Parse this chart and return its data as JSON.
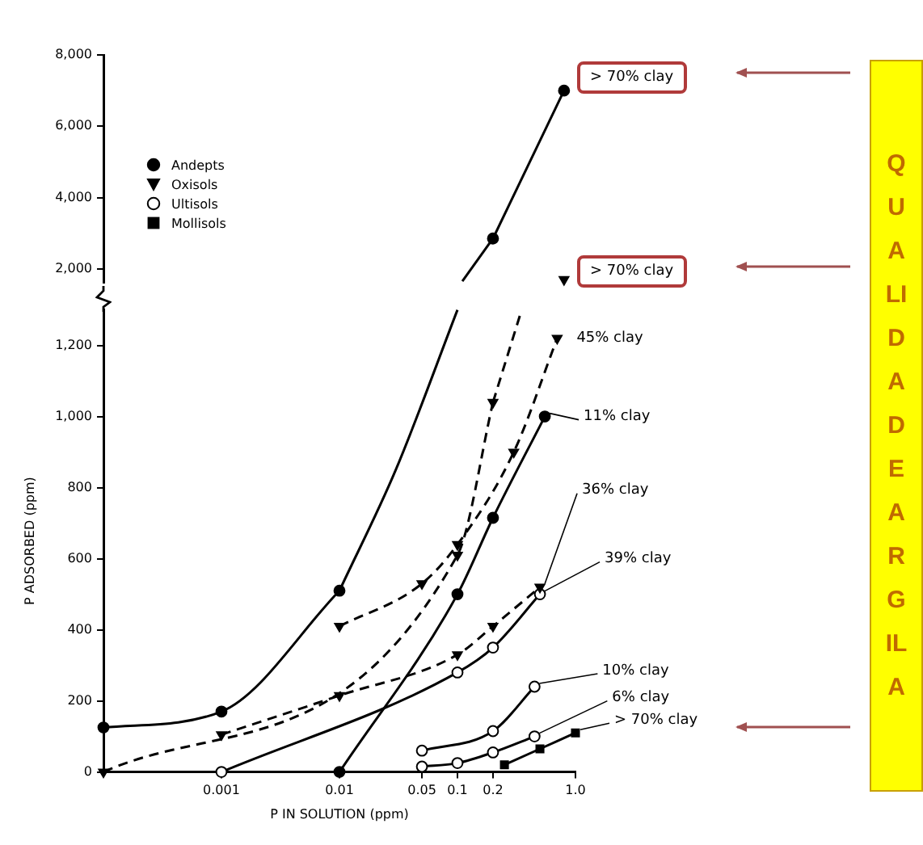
{
  "chart_data": [
    {
      "type": "line",
      "log": "x",
      "tick_labels": "y",
      "xlim": [
        0.0001,
        1
      ],
      "ylim": [
        1600,
        8000
      ],
      "yticks": [
        {
          "value": 2000,
          "label": "2,000"
        },
        {
          "value": 4000,
          "label": "4,000"
        },
        {
          "value": 6000,
          "label": "6,000"
        },
        {
          "value": 8000,
          "label": "8,000"
        }
      ],
      "series": [
        {
          "color": "#000000",
          "marker": "circle",
          "line_style": "solid",
          "x": [
            0.2,
            0.8
          ],
          "values": [
            2850,
            7000
          ]
        },
        {
          "color": "#000000",
          "marker": "none",
          "line_style": "solid",
          "x": [
            0.11,
            0.2
          ],
          "values": [
            1650,
            2850
          ]
        },
        {
          "color": "#000000",
          "marker": "triangle",
          "line_style": "dashed",
          "x": [
            0.8
          ],
          "values": [
            1700
          ]
        }
      ],
      "annotations": [
        "> 70% clay",
        "> 70% clay",
        "QUALIDADE ARGILA"
      ]
    },
    {
      "type": "line",
      "xlabel": "P IN SOLUTION (ppm)",
      "ylabel": "P ADSORBED (ppm)",
      "log": "x",
      "legend": "top left",
      "xlim": [
        0.0001,
        1
      ],
      "xticks": [
        0.001,
        0.01,
        0.05,
        0.1,
        0.2,
        {
          "value": 1,
          "label": "1.0"
        }
      ],
      "ylim": [
        0,
        1300
      ],
      "yticks": [
        0,
        200,
        400,
        600,
        800,
        {
          "value": 1000,
          "label": "1,000"
        },
        {
          "value": 1200,
          "label": "1,200"
        }
      ],
      "series": [
        {
          "name": "Andepts",
          "color": "#000000",
          "marker": "circle",
          "line_style": "solid",
          "x": [
            0.0001,
            0.001,
            0.01,
            null,
            0.01,
            0.1,
            0.2,
            0.55
          ],
          "values": [
            125,
            170,
            510,
            null,
            0,
            500,
            715,
            1000
          ]
        },
        {
          "color": "#000000",
          "marker": "none",
          "line_style": "solid",
          "x": [
            0.01,
            0.03,
            0.1
          ],
          "values": [
            510,
            850,
            1300
          ]
        },
        {
          "name": "Oxisols",
          "color": "#000000",
          "marker": "triangle",
          "line_style": "dashed",
          "x": [
            0.0001,
            0.1,
            0.2,
            null,
            0.01,
            0.05,
            0.1,
            0.3,
            0.7,
            null,
            0.001,
            0.01,
            0.1,
            0.2,
            0.5
          ],
          "values": [
            0,
            610,
            1040,
            null,
            410,
            530,
            640,
            900,
            1220,
            null,
            105,
            215,
            330,
            410,
            520
          ]
        },
        {
          "color": "#000000",
          "marker": "none",
          "line_style": "dashed",
          "x": [
            0.2,
            0.35
          ],
          "values": [
            1040,
            1300
          ]
        },
        {
          "name": "Ultisols",
          "color": "#000000",
          "marker": "circle",
          "line_style": "solid",
          "x": [
            0.001,
            0.1,
            0.2,
            0.5,
            null,
            0.05,
            0.2,
            0.45,
            null,
            0.05,
            0.1,
            0.2,
            0.45
          ],
          "values": [
            0,
            280,
            350,
            500,
            null,
            60,
            115,
            240,
            null,
            15,
            25,
            55,
            100
          ]
        },
        {
          "name": "Mollisols",
          "color": "#000000",
          "marker": "square",
          "line_style": "solid",
          "x": [
            0.25,
            0.5,
            1
          ],
          "values": [
            20,
            65,
            110
          ]
        }
      ],
      "annotations": [
        {
          "text": "45% clay",
          "x": 0.7,
          "y": 1220
        },
        {
          "text": "11% clay",
          "x": 0.55,
          "y": 1000
        },
        {
          "text": "36% clay",
          "x": 0.5,
          "y": 520
        },
        {
          "text": "39% clay",
          "x": 0.5,
          "y": 500
        },
        {
          "text": "10% clay",
          "x": 0.45,
          "y": 240
        },
        {
          "text": "6% clay",
          "x": 0.45,
          "y": 100
        },
        {
          "text": "> 70% clay",
          "x": 1,
          "y": 110
        }
      ]
    }
  ]
}
